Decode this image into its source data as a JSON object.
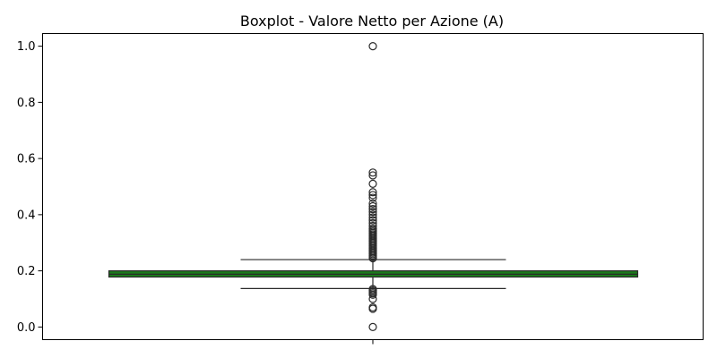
{
  "chart_data": {
    "type": "box",
    "title": "Boxplot - Valore Netto per Azione (A)",
    "xlabel": "",
    "ylabel": "",
    "ylim": [
      -0.045,
      1.045
    ],
    "yticks": [
      "0.0",
      "0.2",
      "0.4",
      "0.6",
      "0.8",
      "1.0"
    ],
    "grid": false,
    "box_color": "#1a7a1a",
    "box": {
      "q1": 0.178,
      "median": 0.188,
      "q3": 0.2,
      "whisker_low": 0.137,
      "whisker_high": 0.24
    },
    "outliers": [
      1.0,
      0.55,
      0.54,
      0.51,
      0.48,
      0.47,
      0.46,
      0.44,
      0.43,
      0.42,
      0.41,
      0.4,
      0.39,
      0.38,
      0.37,
      0.36,
      0.35,
      0.345,
      0.34,
      0.335,
      0.33,
      0.325,
      0.32,
      0.315,
      0.31,
      0.305,
      0.3,
      0.295,
      0.29,
      0.285,
      0.28,
      0.275,
      0.27,
      0.265,
      0.26,
      0.255,
      0.25,
      0.245,
      0.135,
      0.13,
      0.125,
      0.12,
      0.115,
      0.1,
      0.07,
      0.065,
      0.0
    ]
  }
}
